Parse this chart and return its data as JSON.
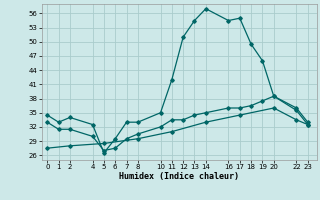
{
  "xlabel": "Humidex (Indice chaleur)",
  "background_color": "#cde8e8",
  "grid_color": "#aacccc",
  "line_color": "#006666",
  "ylim": [
    25,
    58
  ],
  "yticks": [
    26,
    29,
    32,
    35,
    38,
    41,
    44,
    47,
    50,
    53,
    56
  ],
  "xticks": [
    0,
    1,
    2,
    4,
    5,
    6,
    7,
    8,
    10,
    11,
    12,
    13,
    14,
    16,
    17,
    18,
    19,
    20,
    22,
    23
  ],
  "xlim": [
    -0.5,
    23.8
  ],
  "line1_x": [
    0,
    1,
    2,
    4,
    5,
    6,
    7,
    8,
    10,
    11,
    12,
    13,
    14,
    16,
    17,
    18,
    19,
    20,
    22,
    23
  ],
  "line1_y": [
    34.5,
    33.0,
    34.0,
    32.5,
    26.5,
    29.5,
    33.0,
    33.0,
    35.0,
    42.0,
    51.0,
    54.5,
    57.0,
    54.5,
    55.0,
    49.5,
    46.0,
    38.5,
    35.5,
    32.5
  ],
  "line2_x": [
    0,
    1,
    2,
    4,
    5,
    6,
    7,
    8,
    10,
    11,
    12,
    13,
    14,
    16,
    17,
    18,
    19,
    20,
    22,
    23
  ],
  "line2_y": [
    33.0,
    31.5,
    31.5,
    30.0,
    27.0,
    27.5,
    29.5,
    30.5,
    32.0,
    33.5,
    33.5,
    34.5,
    35.0,
    36.0,
    36.0,
    36.5,
    37.5,
    38.5,
    36.0,
    33.0
  ],
  "line3_x": [
    0,
    2,
    5,
    8,
    11,
    14,
    17,
    20,
    22,
    23
  ],
  "line3_y": [
    27.5,
    28.0,
    28.5,
    29.5,
    31.0,
    33.0,
    34.5,
    36.0,
    33.5,
    32.5
  ]
}
